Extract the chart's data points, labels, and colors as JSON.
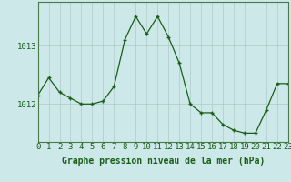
{
  "x": [
    0,
    1,
    2,
    3,
    4,
    5,
    6,
    7,
    8,
    9,
    10,
    11,
    12,
    13,
    14,
    15,
    16,
    17,
    18,
    19,
    20,
    21,
    22,
    23
  ],
  "y": [
    1012.15,
    1012.45,
    1012.2,
    1012.1,
    1012.0,
    1012.0,
    1012.05,
    1012.3,
    1013.1,
    1013.5,
    1013.2,
    1013.5,
    1013.15,
    1012.7,
    1012.0,
    1011.85,
    1011.85,
    1011.65,
    1011.55,
    1011.5,
    1011.5,
    1011.9,
    1012.35,
    1012.35
  ],
  "line_color": "#1a5e1a",
  "marker_color": "#1a5e1a",
  "bg_color": "#cce8e8",
  "grid_color_v": "#b0c8c8",
  "grid_color_h": "#b0c8c8",
  "ylabel_ticks": [
    1012,
    1013
  ],
  "xlabel": "Graphe pression niveau de la mer (hPa)",
  "xlim": [
    0,
    23
  ],
  "ylim": [
    1011.35,
    1013.75
  ],
  "label_fontsize": 7,
  "tick_fontsize": 6.5
}
